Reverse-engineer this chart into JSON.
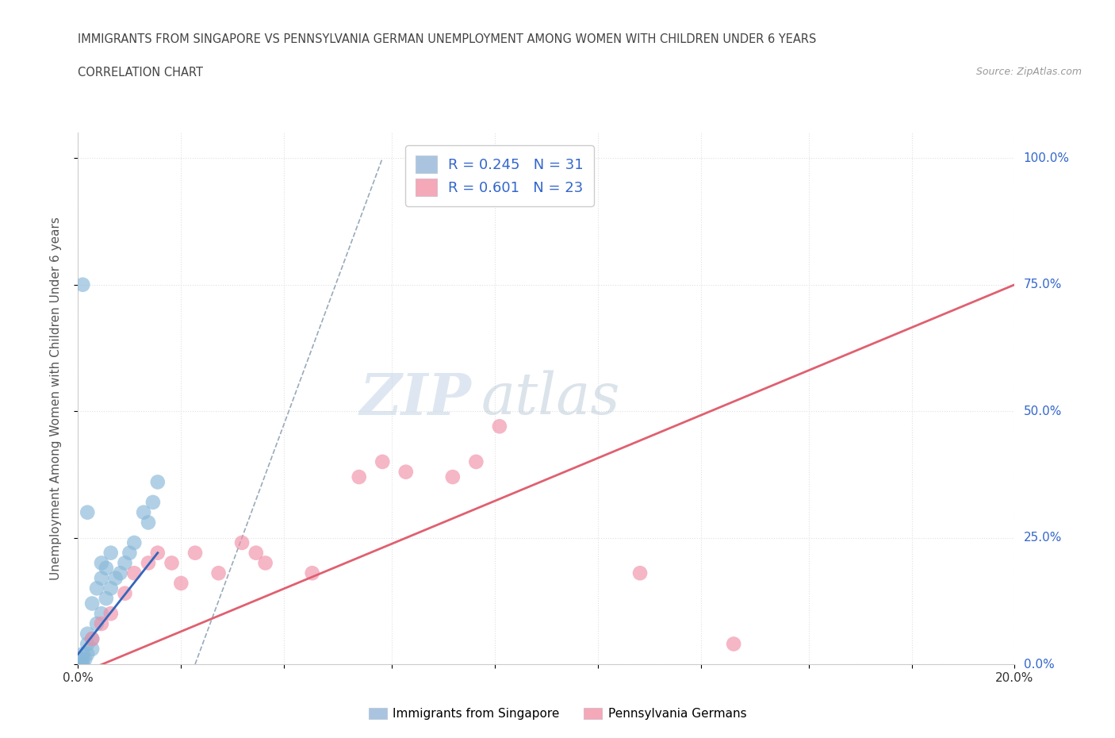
{
  "title_line1": "IMMIGRANTS FROM SINGAPORE VS PENNSYLVANIA GERMAN UNEMPLOYMENT AMONG WOMEN WITH CHILDREN UNDER 6 YEARS",
  "title_line2": "CORRELATION CHART",
  "source": "Source: ZipAtlas.com",
  "ylabel": "Unemployment Among Women with Children Under 6 years",
  "xlim": [
    0.0,
    0.2
  ],
  "ylim": [
    0.0,
    1.05
  ],
  "ytick_labels": [
    "0.0%",
    "25.0%",
    "50.0%",
    "75.0%",
    "100.0%"
  ],
  "ytick_vals": [
    0.0,
    0.25,
    0.5,
    0.75,
    1.0
  ],
  "xtick_labels": [
    "0.0%",
    "",
    "",
    "",
    "",
    "",
    "",
    "",
    "",
    "20.0%"
  ],
  "xtick_vals": [
    0.0,
    0.022,
    0.044,
    0.067,
    0.089,
    0.111,
    0.133,
    0.156,
    0.178,
    0.2
  ],
  "blue_color": "#aac4e0",
  "pink_color": "#f4a8b8",
  "blue_line_color": "#3366bb",
  "pink_line_color": "#e06070",
  "blue_dot_color": "#88b8d8",
  "pink_dot_color": "#f090a8",
  "dashed_line_color": "#99aabb",
  "R_blue": 0.245,
  "N_blue": 31,
  "R_pink": 0.601,
  "N_pink": 23,
  "legend_label_blue": "Immigrants from Singapore",
  "legend_label_pink": "Pennsylvania Germans",
  "singapore_x": [
    0.0005,
    0.001,
    0.001,
    0.001,
    0.0015,
    0.002,
    0.002,
    0.002,
    0.003,
    0.003,
    0.003,
    0.004,
    0.004,
    0.005,
    0.005,
    0.005,
    0.006,
    0.006,
    0.007,
    0.007,
    0.008,
    0.009,
    0.01,
    0.011,
    0.012,
    0.014,
    0.015,
    0.016,
    0.017,
    0.002,
    0.001
  ],
  "singapore_y": [
    0.0,
    0.0,
    0.01,
    0.02,
    0.01,
    0.02,
    0.04,
    0.06,
    0.03,
    0.05,
    0.12,
    0.08,
    0.15,
    0.1,
    0.17,
    0.2,
    0.13,
    0.19,
    0.15,
    0.22,
    0.17,
    0.18,
    0.2,
    0.22,
    0.24,
    0.3,
    0.28,
    0.32,
    0.36,
    0.3,
    0.75
  ],
  "pa_german_x": [
    0.003,
    0.005,
    0.007,
    0.01,
    0.012,
    0.015,
    0.017,
    0.02,
    0.022,
    0.025,
    0.03,
    0.035,
    0.038,
    0.04,
    0.05,
    0.06,
    0.065,
    0.07,
    0.08,
    0.085,
    0.09,
    0.12,
    0.14
  ],
  "pa_german_y": [
    0.05,
    0.08,
    0.1,
    0.14,
    0.18,
    0.2,
    0.22,
    0.2,
    0.16,
    0.22,
    0.18,
    0.24,
    0.22,
    0.2,
    0.18,
    0.37,
    0.4,
    0.38,
    0.37,
    0.4,
    0.47,
    0.18,
    0.04
  ],
  "watermark_zip": "ZIP",
  "watermark_atlas": "atlas",
  "background_color": "#ffffff",
  "grid_color": "#e0e0e0",
  "grid_style": "dotted"
}
